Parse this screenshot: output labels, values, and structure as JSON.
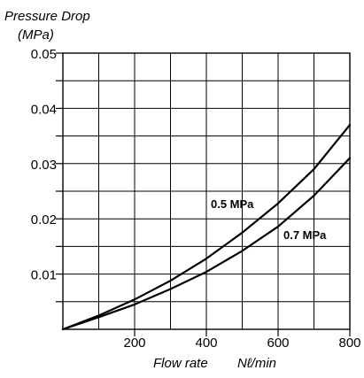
{
  "chart_data": {
    "type": "line",
    "ylabel": "Pressure Drop",
    "yunit": "(MPa)",
    "xlabel": "Flow rate",
    "xunit": "Nℓ/min",
    "xlim": [
      0,
      800
    ],
    "ylim": [
      0,
      0.05
    ],
    "x_ticks": [
      200,
      400,
      600,
      800
    ],
    "x_tick_labels": [
      "200",
      "400",
      "600",
      "800"
    ],
    "y_ticks": [
      0.01,
      0.02,
      0.03,
      0.04,
      0.05
    ],
    "y_tick_labels": [
      "0.01",
      "0.02",
      "0.03",
      "0.04",
      "0.05"
    ],
    "grid": true,
    "series": [
      {
        "name": "0.5 MPa",
        "x": [
          0,
          100,
          200,
          300,
          400,
          500,
          600,
          700,
          800
        ],
        "y": [
          0,
          0.0025,
          0.0054,
          0.0088,
          0.0128,
          0.0175,
          0.0228,
          0.029,
          0.037
        ]
      },
      {
        "name": "0.7 MPa",
        "x": [
          0,
          100,
          200,
          300,
          400,
          500,
          600,
          700,
          800
        ],
        "y": [
          0,
          0.0022,
          0.0045,
          0.0073,
          0.0104,
          0.0142,
          0.0186,
          0.0242,
          0.031
        ]
      }
    ]
  },
  "colors": {
    "axis": "#000000",
    "grid": "#000000",
    "series": "#000000",
    "background": "#ffffff"
  }
}
